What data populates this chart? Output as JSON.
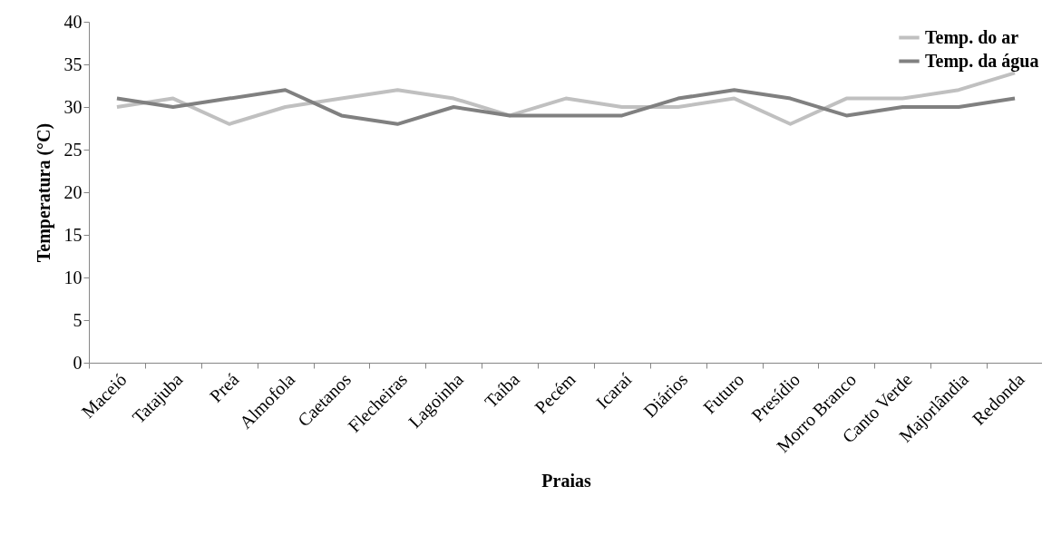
{
  "chart_data": {
    "type": "line",
    "xlabel": "Praias",
    "ylabel": "Temperatura (°C)",
    "categories": [
      "Maceió",
      "Tatajuba",
      "Preá",
      "Almofola",
      "Caetanos",
      "Flecheiras",
      "Lagoinha",
      "Taíba",
      "Pecém",
      "Icaraí",
      "Diários",
      "Futuro",
      "Presídio",
      "Morro Branco",
      "Canto Verde",
      "Majorlândia",
      "Redonda"
    ],
    "series": [
      {
        "name": "Temp. do ar",
        "color": "#c0c0c0",
        "values": [
          30,
          31,
          28,
          30,
          31,
          32,
          31,
          29,
          31,
          30,
          30,
          31,
          28,
          31,
          31,
          32,
          34
        ]
      },
      {
        "name": "Temp. da água",
        "color": "#808080",
        "values": [
          31,
          30,
          31,
          32,
          29,
          28,
          30,
          29,
          29,
          29,
          31,
          32,
          31,
          29,
          30,
          30,
          31
        ]
      }
    ],
    "ylim": [
      0,
      40
    ],
    "yticks": [
      0,
      5,
      10,
      15,
      20,
      25,
      30,
      35,
      40
    ],
    "grid": false,
    "legend": "top right",
    "line_style": "solid",
    "marker": "none"
  }
}
